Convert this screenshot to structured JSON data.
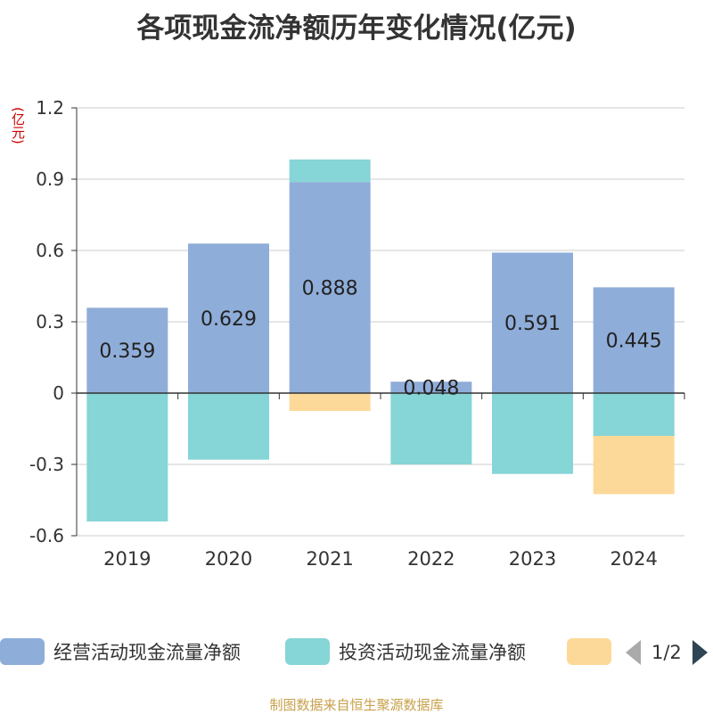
{
  "chart_data": {
    "type": "bar",
    "title": "各项现金流净额历年变化情况(亿元)",
    "ylabel": "(亿元)",
    "ylim": [
      -0.6,
      1.2
    ],
    "yticks": [
      "1.2",
      "0.9",
      "0.6",
      "0.3",
      "0",
      "-0.3",
      "-0.6"
    ],
    "ytick_values": [
      1.2,
      0.9,
      0.6,
      0.3,
      0,
      -0.3,
      -0.6
    ],
    "categories": [
      "2019",
      "2020",
      "2021",
      "2022",
      "2023",
      "2024"
    ],
    "series": [
      {
        "name": "经营活动现金流量净额",
        "color": "#8fadd9",
        "values": [
          0.359,
          0.629,
          0.888,
          0.048,
          0.591,
          0.445
        ],
        "labels": [
          "0.359",
          "0.629",
          "0.888",
          "0.048",
          "0.591",
          "0.445"
        ]
      },
      {
        "name": "投资活动现金流量净额",
        "color": "#86d5d7",
        "values": [
          -0.54,
          -0.28,
          0.095,
          -0.3,
          -0.34,
          -0.18
        ]
      },
      {
        "name": "",
        "color": "#fdd999",
        "values": [
          0,
          0,
          -0.075,
          0,
          0,
          -0.245
        ]
      }
    ],
    "legend_page": "1/2",
    "grid": true
  },
  "source": "制图数据来自恒生聚源数据库"
}
